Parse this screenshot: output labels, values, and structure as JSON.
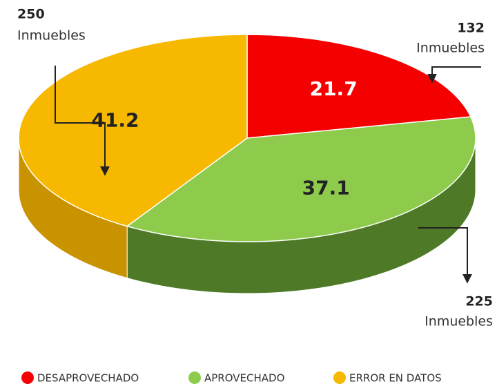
{
  "chart_data": {
    "type": "pie3d",
    "categories": [
      "DESAPROVECHADO",
      "APROVECHADO",
      "ERROR EN DATOS"
    ],
    "values": [
      21.7,
      37.1,
      41.2
    ],
    "colors": [
      "#f50000",
      "#8ecb4c",
      "#f6b800"
    ],
    "side_colors": [
      "#b00000",
      "#4e7a28",
      "#c99300"
    ],
    "value_label_colors": [
      "#ffffff",
      "#222222",
      "#222222"
    ],
    "annotations": [
      {
        "count": 132,
        "text": "Inmuebles"
      },
      {
        "count": 225,
        "text": "Inmuebles"
      },
      {
        "count": 250,
        "text": "Inmuebles"
      }
    ],
    "legend": "bottom"
  }
}
